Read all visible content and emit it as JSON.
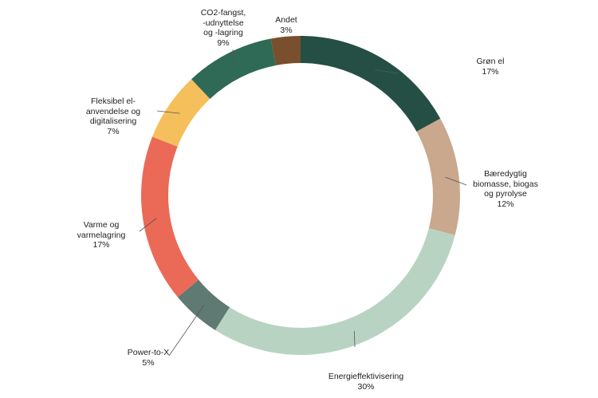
{
  "chart_data": {
    "type": "pie",
    "donut": true,
    "legend": "none",
    "slices": [
      {
        "label": [
          "Grøn el"
        ],
        "pct_label": "17%",
        "value": 17,
        "color": "#254f45"
      },
      {
        "label": [
          "Bæredygtig",
          "biomasse, biogas",
          "og pyrolyse"
        ],
        "pct_label": "12%",
        "value": 12,
        "color": "#c9a88d"
      },
      {
        "label": [
          "Energieffektivisering"
        ],
        "pct_label": "30%",
        "value": 30,
        "color": "#b9d3c3"
      },
      {
        "label": [
          "Power-to-X"
        ],
        "pct_label": "5%",
        "value": 5,
        "color": "#5e7a72"
      },
      {
        "label": [
          "Varme og",
          "varmelagring"
        ],
        "pct_label": "17%",
        "value": 17,
        "color": "#ea6a57"
      },
      {
        "label": [
          "Fleksibel el-",
          "anvendelse og",
          "digitalisering"
        ],
        "pct_label": "7%",
        "value": 7,
        "color": "#f5bf5c"
      },
      {
        "label": [
          "CO2-fangst,",
          "-udnyttelse",
          "og -lagring"
        ],
        "pct_label": "9%",
        "value": 9,
        "color": "#2e6a55"
      },
      {
        "label": [
          "Andet"
        ],
        "pct_label": "3%",
        "value": 3,
        "color": "#7a4f2e"
      }
    ]
  }
}
